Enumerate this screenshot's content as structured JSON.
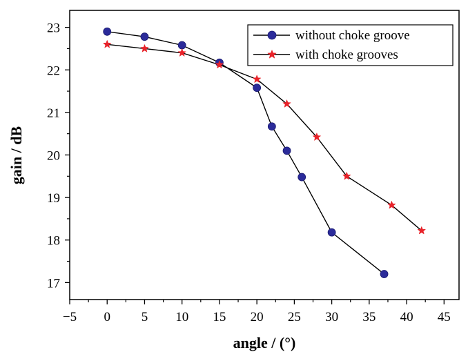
{
  "chart_data": {
    "type": "line",
    "title": "",
    "xlabel": "angle / (°)",
    "ylabel": "gain / dB",
    "xlim": [
      -5,
      47
    ],
    "ylim": [
      16.6,
      23.4
    ],
    "x_ticks": [
      -5,
      0,
      5,
      10,
      15,
      20,
      25,
      30,
      35,
      40,
      45
    ],
    "x_tick_labels": [
      "−5",
      "0",
      "5",
      "10",
      "15",
      "20",
      "25",
      "30",
      "35",
      "40",
      "45"
    ],
    "y_ticks": [
      17,
      18,
      19,
      20,
      21,
      22,
      23
    ],
    "y_tick_labels": [
      "17",
      "18",
      "19",
      "20",
      "21",
      "22",
      "23"
    ],
    "grid": false,
    "legend_position": "top-right",
    "series": [
      {
        "name": "without choke groove",
        "marker": "circle",
        "color": "#2b2b9a",
        "x": [
          0,
          5,
          10,
          15,
          20,
          22,
          24,
          26,
          30,
          37
        ],
        "y": [
          22.9,
          22.78,
          22.58,
          22.17,
          21.58,
          20.67,
          20.1,
          19.48,
          18.18,
          17.2
        ]
      },
      {
        "name": "with choke grooves",
        "marker": "star",
        "color": "#e8232a",
        "x": [
          0,
          5,
          10,
          15,
          20,
          24,
          28,
          32,
          38,
          42
        ],
        "y": [
          22.6,
          22.5,
          22.4,
          22.12,
          21.78,
          21.2,
          20.42,
          19.5,
          18.82,
          18.22
        ]
      }
    ]
  }
}
